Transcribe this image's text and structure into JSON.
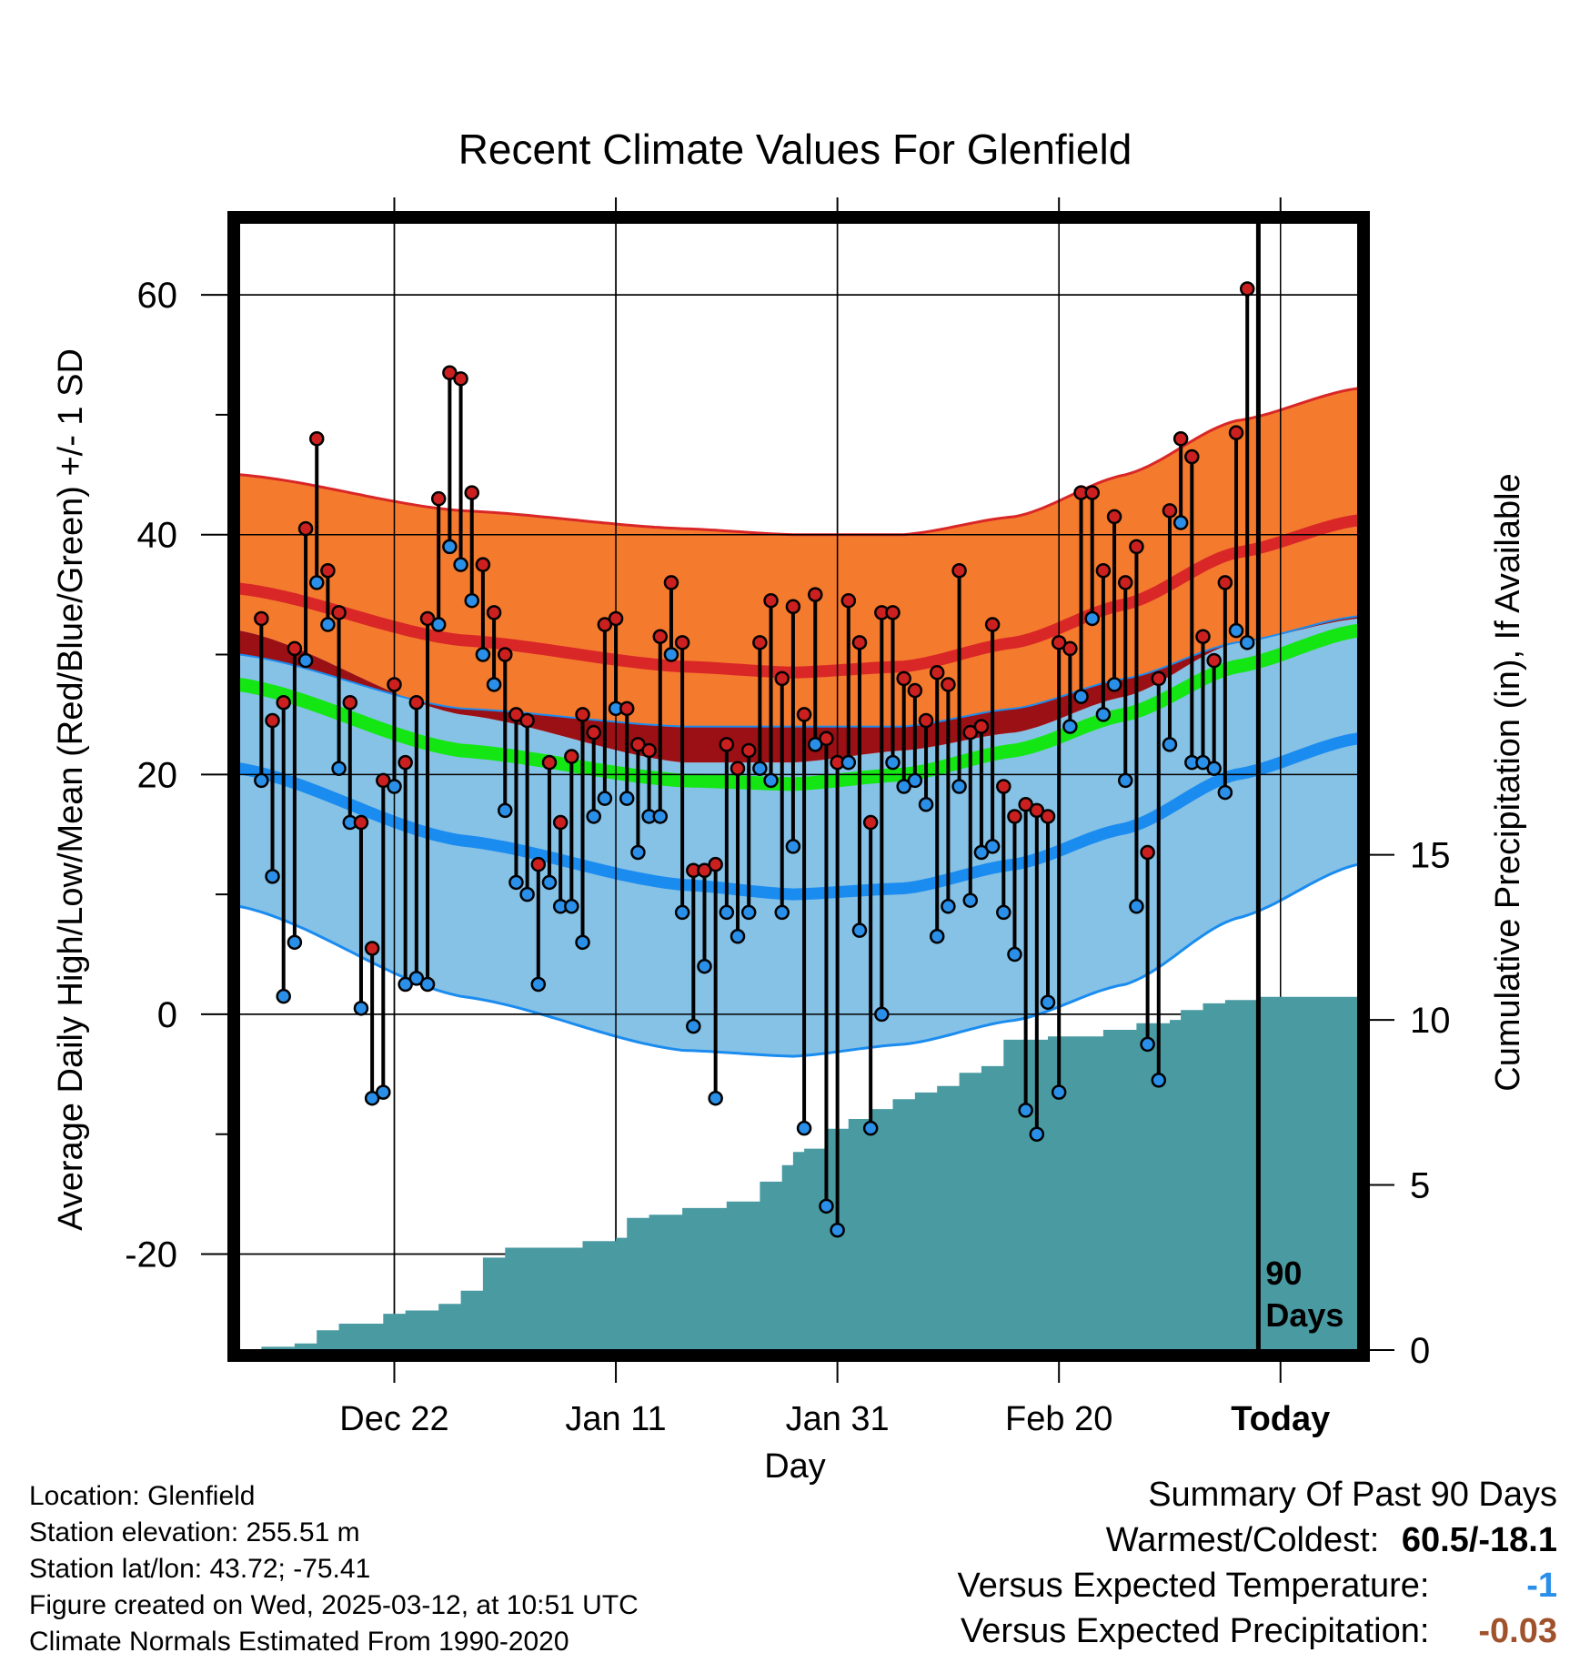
{
  "chart_data": {
    "type": "line",
    "title": "Recent Climate Values For Glenfield",
    "xlabel": "Day",
    "ylabel": "Average Daily High/Low/Mean (Red/Blue/Green) +/- 1 SD",
    "y2label": "Cumulative Precipitation (in), If Available",
    "x_ticks": [
      "Dec 22",
      "Jan 11",
      "Jan 31",
      "Feb 20",
      "Today"
    ],
    "y_ticks": [
      "60",
      "40",
      "20",
      "0",
      "-20"
    ],
    "y2_ticks": [
      "15",
      "10",
      "5",
      "0"
    ],
    "ylim": [
      -28,
      66
    ],
    "y2lim": [
      0,
      15
    ],
    "x_range_days": [
      -92,
      9
    ],
    "today_label": [
      "90",
      "Days"
    ],
    "colors": {
      "high_band": "#f47a2e",
      "high_mean": "#d92727",
      "mean_band": "#9a1014",
      "mean_line": "#14e614",
      "low_band": "#86c1e6",
      "low_mean": "#1a8cf0",
      "high_marker": "#cc2020",
      "low_marker": "#2a8fe8",
      "precip": "#4a9aa2"
    },
    "normals": {
      "day": [
        -92,
        -72,
        -52,
        -42,
        -32,
        -22,
        -12,
        -2,
        9
      ],
      "high_mean": [
        35.5,
        31.2,
        29.0,
        28.5,
        29.0,
        31.0,
        34.2,
        38.5,
        41.2
      ],
      "high_sd_upper": [
        45.0,
        42.0,
        40.5,
        40.0,
        40.0,
        41.5,
        45.0,
        49.5,
        52.2
      ],
      "high_sd_lower": [
        30.0,
        25.5,
        24.0,
        24.0,
        24.0,
        25.5,
        28.0,
        31.0,
        33.2
      ],
      "low_mean": [
        20.5,
        14.5,
        10.8,
        10.0,
        10.5,
        12.5,
        15.5,
        20.0,
        23.0
      ],
      "low_sd_upper": [
        32.0,
        25.0,
        21.0,
        21.0,
        22.0,
        23.5,
        26.5,
        31.0,
        33.0
      ],
      "low_sd_lower": [
        9.0,
        1.5,
        -3.0,
        -3.5,
        -2.5,
        -0.5,
        2.5,
        8.0,
        12.5
      ],
      "mean": [
        27.5,
        22.0,
        19.5,
        19.2,
        20.0,
        22.0,
        25.0,
        29.0,
        32.0
      ]
    },
    "series": [
      {
        "name": "High",
        "days": [
          -90,
          -89,
          -88,
          -87,
          -86,
          -85,
          -84,
          -83,
          -82,
          -81,
          -80,
          -79,
          -78,
          -77,
          -76,
          -75,
          -74,
          -73,
          -72,
          -71,
          -70,
          -69,
          -68,
          -67,
          -66,
          -65,
          -64,
          -63,
          -62,
          -61,
          -60,
          -59,
          -58,
          -57,
          -56,
          -55,
          -54,
          -53,
          -52,
          -51,
          -50,
          -49,
          -48,
          -47,
          -46,
          -45,
          -44,
          -43,
          -42,
          -41,
          -40,
          -39,
          -38,
          -37,
          -36,
          -35,
          -34,
          -33,
          -32,
          -31,
          -30,
          -29,
          -28,
          -27,
          -26,
          -25,
          -24,
          -23,
          -22,
          -21,
          -20,
          -19,
          -18,
          -17,
          -16,
          -15,
          -14,
          -13,
          -12,
          -11,
          -10,
          -9,
          -8,
          -7,
          -6,
          -5,
          -4,
          -3,
          -2,
          -1
        ],
        "values": [
          33,
          24.5,
          26,
          30.5,
          40.5,
          48,
          37,
          33.5,
          26,
          16,
          5.5,
          19.5,
          27.5,
          21,
          26,
          33,
          43,
          53.5,
          53,
          43.5,
          37.5,
          33.5,
          30,
          25,
          24.5,
          12.5,
          21,
          16,
          21.5,
          25,
          23.5,
          32.5,
          33,
          25.5,
          22.5,
          22,
          31.5,
          36,
          31,
          12,
          12,
          12.5,
          22.5,
          20.5,
          22,
          31,
          34.5,
          28,
          34,
          25,
          35,
          23,
          21,
          34.5,
          31,
          16,
          33.5,
          33.5,
          28,
          27,
          24.5,
          28.5,
          27.5,
          37,
          23.5,
          24,
          32.5,
          19,
          16.5,
          17.5,
          17,
          16.5,
          31,
          30.5,
          43.5,
          43.5,
          37,
          41.5,
          36,
          39,
          13.5,
          28,
          42,
          48,
          46.5,
          31.5,
          29.5,
          36,
          48.5,
          60.5
        ]
      },
      {
        "name": "Low",
        "days": [
          -90,
          -89,
          -88,
          -87,
          -86,
          -85,
          -84,
          -83,
          -82,
          -81,
          -80,
          -79,
          -78,
          -77,
          -76,
          -75,
          -74,
          -73,
          -72,
          -71,
          -70,
          -69,
          -68,
          -67,
          -66,
          -65,
          -64,
          -63,
          -62,
          -61,
          -60,
          -59,
          -58,
          -57,
          -56,
          -55,
          -54,
          -53,
          -52,
          -51,
          -50,
          -49,
          -48,
          -47,
          -46,
          -45,
          -44,
          -43,
          -42,
          -41,
          -40,
          -39,
          -38,
          -37,
          -36,
          -35,
          -34,
          -33,
          -32,
          -31,
          -30,
          -29,
          -28,
          -27,
          -26,
          -25,
          -24,
          -23,
          -22,
          -21,
          -20,
          -19,
          -18,
          -17,
          -16,
          -15,
          -14,
          -13,
          -12,
          -11,
          -10,
          -9,
          -8,
          -7,
          -6,
          -5,
          -4,
          -3,
          -2,
          -1
        ],
        "values": [
          19.5,
          11.5,
          1.5,
          6,
          29.5,
          36,
          32.5,
          20.5,
          16,
          0.5,
          -7,
          -6.5,
          19,
          2.5,
          3,
          2.5,
          32.5,
          39,
          37.5,
          34.5,
          30,
          27.5,
          17,
          11,
          10,
          2.5,
          11,
          9,
          9,
          6,
          16.5,
          18,
          25.5,
          18,
          13.5,
          16.5,
          16.5,
          30,
          8.5,
          -1,
          4,
          -7,
          8.5,
          6.5,
          8.5,
          20.5,
          19.5,
          8.5,
          14,
          -9.5,
          22.5,
          -16,
          -18,
          21,
          7,
          -9.5,
          0,
          21,
          19,
          19.5,
          17.5,
          6.5,
          9,
          19,
          9.5,
          13.5,
          14,
          8.5,
          5,
          -8,
          -10,
          1,
          -6.5,
          24,
          26.5,
          33,
          25,
          27.5,
          19.5,
          9,
          -2.5,
          -5.5,
          22.5,
          41,
          21,
          21,
          20.5,
          18.5,
          32,
          31
        ]
      },
      {
        "name": "Cumulative Precipitation",
        "days": [
          -90,
          -87,
          -85,
          -83,
          -81,
          -79,
          -77,
          -74,
          -72,
          -70,
          -68,
          -66,
          -64,
          -61,
          -58,
          -57,
          -55,
          -52,
          -48,
          -45,
          -43,
          -42,
          -41,
          -39,
          -37,
          -35,
          -33,
          -31,
          -29,
          -27,
          -25,
          -23,
          -19,
          -14,
          -11,
          -8,
          -7,
          -5,
          -3,
          0,
          9
        ],
        "values": [
          0.1,
          0.2,
          0.6,
          0.8,
          0.8,
          1.1,
          1.2,
          1.4,
          1.8,
          2.8,
          3.1,
          3.1,
          3.1,
          3.3,
          3.4,
          4.0,
          4.1,
          4.3,
          4.5,
          5.1,
          5.6,
          6.0,
          6.1,
          6.7,
          7.0,
          7.3,
          7.6,
          7.8,
          8.0,
          8.4,
          8.6,
          9.4,
          9.5,
          9.7,
          9.9,
          10.0,
          10.3,
          10.5,
          10.6,
          10.7,
          10.7
        ]
      }
    ]
  },
  "footer": {
    "location": "Location: Glenfield",
    "elevation": "Station elevation: 255.51 m",
    "latlon": "Station lat/lon: 43.72; -75.41",
    "created": "Figure created on Wed, 2025-03-12, at 10:51 UTC",
    "normals": "Climate Normals Estimated From 1990-2020"
  },
  "summary": {
    "title": "Summary Of Past 90 Days",
    "warmest_coldest_label": "Warmest/Coldest:",
    "warmest_coldest_value": "60.5/-18.1",
    "temp_label": "Versus Expected Temperature:",
    "temp_value": "-1",
    "temp_color": "#2a8fe8",
    "precip_label": "Versus Expected Precipitation:",
    "precip_value": "-0.03",
    "precip_color": "#a0522d"
  }
}
